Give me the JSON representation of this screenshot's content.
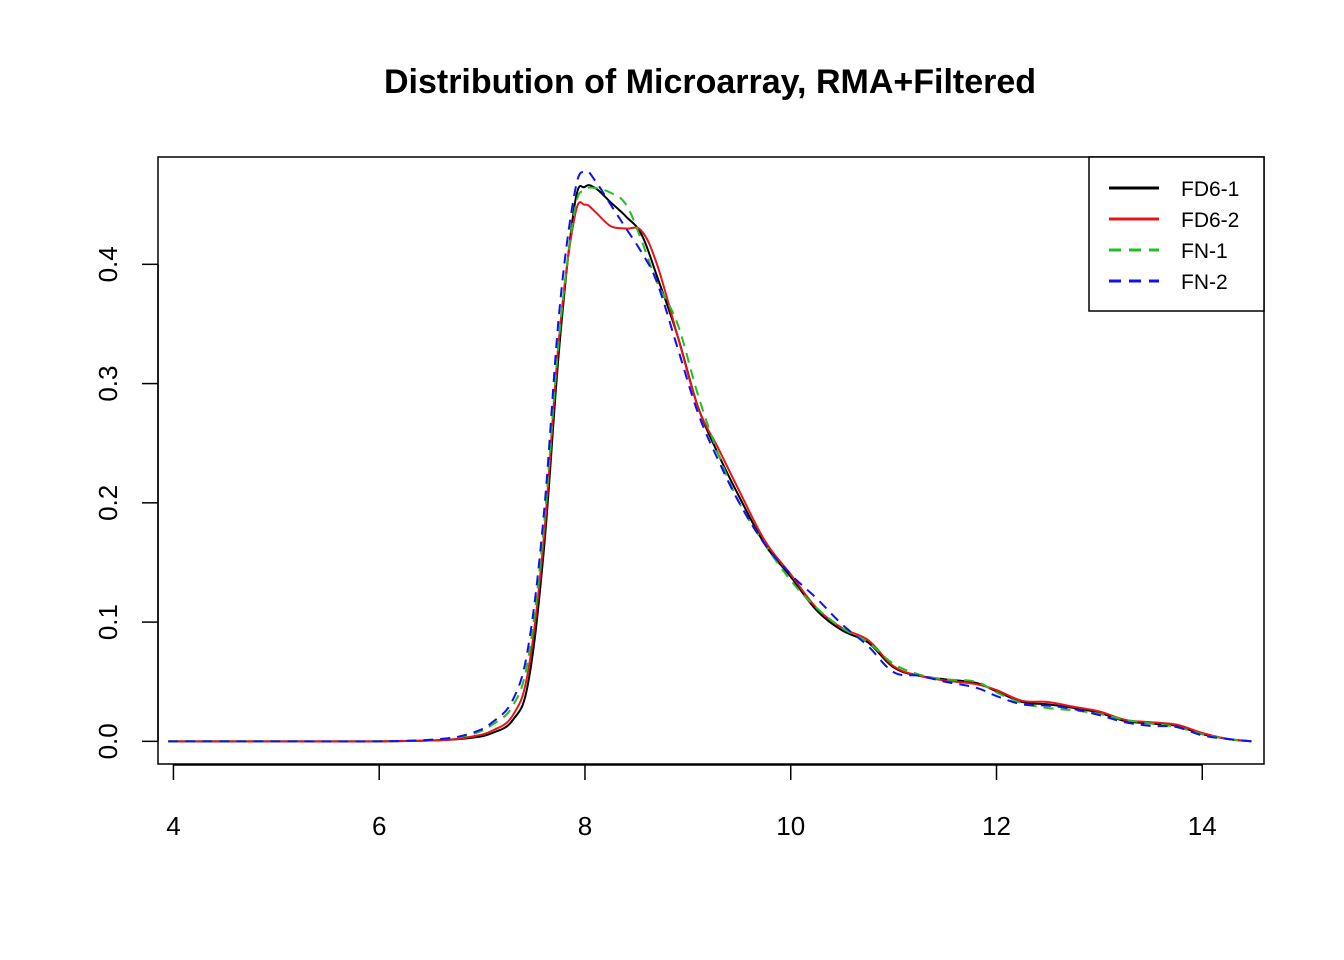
{
  "chart_data": {
    "type": "line",
    "title": "Distribution of Microarray, RMA+Filtered",
    "xlabel": "",
    "ylabel": "",
    "xlim": [
      3.85,
      14.6
    ],
    "ylim": [
      -0.019,
      0.49
    ],
    "x_ticks": [
      4,
      6,
      8,
      10,
      12,
      14
    ],
    "x_tick_labels": [
      "4",
      "6",
      "8",
      "10",
      "12",
      "14"
    ],
    "y_ticks": [
      0.0,
      0.1,
      0.2,
      0.3,
      0.4
    ],
    "y_tick_labels": [
      "0.0",
      "0.1",
      "0.2",
      "0.3",
      "0.4"
    ],
    "grid": false,
    "legend_position": "top-right",
    "series": [
      {
        "name": "FD6-1",
        "color": "#000000",
        "dash": "solid",
        "points": [
          [
            3.95,
            0.0
          ],
          [
            5,
            0.0
          ],
          [
            6,
            0.0
          ],
          [
            6.6,
            0.001
          ],
          [
            6.9,
            0.003
          ],
          [
            7.1,
            0.007
          ],
          [
            7.3,
            0.018
          ],
          [
            7.45,
            0.05
          ],
          [
            7.6,
            0.16
          ],
          [
            7.75,
            0.33
          ],
          [
            7.9,
            0.45
          ],
          [
            8.0,
            0.465
          ],
          [
            8.1,
            0.464
          ],
          [
            8.25,
            0.452
          ],
          [
            8.4,
            0.44
          ],
          [
            8.55,
            0.425
          ],
          [
            8.7,
            0.39
          ],
          [
            8.9,
            0.34
          ],
          [
            9.1,
            0.28
          ],
          [
            9.3,
            0.24
          ],
          [
            9.5,
            0.205
          ],
          [
            9.75,
            0.165
          ],
          [
            10.0,
            0.138
          ],
          [
            10.25,
            0.11
          ],
          [
            10.5,
            0.093
          ],
          [
            10.75,
            0.083
          ],
          [
            11.0,
            0.062
          ],
          [
            11.25,
            0.055
          ],
          [
            11.5,
            0.052
          ],
          [
            11.8,
            0.049
          ],
          [
            12.0,
            0.042
          ],
          [
            12.25,
            0.033
          ],
          [
            12.5,
            0.031
          ],
          [
            12.75,
            0.028
          ],
          [
            13.0,
            0.024
          ],
          [
            13.25,
            0.017
          ],
          [
            13.5,
            0.015
          ],
          [
            13.75,
            0.013
          ],
          [
            14.0,
            0.006
          ],
          [
            14.25,
            0.002
          ],
          [
            14.48,
            0.0
          ]
        ]
      },
      {
        "name": "FD6-2",
        "color": "#e8141a",
        "dash": "solid",
        "points": [
          [
            3.95,
            0.0
          ],
          [
            5,
            0.0
          ],
          [
            6,
            0.0
          ],
          [
            6.6,
            0.001
          ],
          [
            6.9,
            0.004
          ],
          [
            7.1,
            0.009
          ],
          [
            7.3,
            0.022
          ],
          [
            7.45,
            0.06
          ],
          [
            7.6,
            0.17
          ],
          [
            7.75,
            0.34
          ],
          [
            7.9,
            0.44
          ],
          [
            8.0,
            0.45
          ],
          [
            8.1,
            0.444
          ],
          [
            8.25,
            0.432
          ],
          [
            8.4,
            0.43
          ],
          [
            8.55,
            0.428
          ],
          [
            8.7,
            0.4
          ],
          [
            8.9,
            0.34
          ],
          [
            9.1,
            0.28
          ],
          [
            9.3,
            0.245
          ],
          [
            9.5,
            0.21
          ],
          [
            9.75,
            0.168
          ],
          [
            10.0,
            0.14
          ],
          [
            10.25,
            0.112
          ],
          [
            10.5,
            0.095
          ],
          [
            10.75,
            0.085
          ],
          [
            11.0,
            0.063
          ],
          [
            11.25,
            0.055
          ],
          [
            11.5,
            0.051
          ],
          [
            11.8,
            0.048
          ],
          [
            12.0,
            0.043
          ],
          [
            12.25,
            0.034
          ],
          [
            12.5,
            0.033
          ],
          [
            12.75,
            0.029
          ],
          [
            13.0,
            0.025
          ],
          [
            13.25,
            0.018
          ],
          [
            13.5,
            0.016
          ],
          [
            13.75,
            0.014
          ],
          [
            14.0,
            0.007
          ],
          [
            14.25,
            0.002
          ],
          [
            14.48,
            0.0
          ]
        ]
      },
      {
        "name": "FN-1",
        "color": "#20c020",
        "dash": "dashed",
        "points": [
          [
            3.95,
            0.0
          ],
          [
            5,
            0.0
          ],
          [
            6,
            0.0
          ],
          [
            6.6,
            0.002
          ],
          [
            6.9,
            0.006
          ],
          [
            7.1,
            0.014
          ],
          [
            7.3,
            0.03
          ],
          [
            7.45,
            0.07
          ],
          [
            7.6,
            0.18
          ],
          [
            7.75,
            0.34
          ],
          [
            7.9,
            0.445
          ],
          [
            8.0,
            0.462
          ],
          [
            8.1,
            0.464
          ],
          [
            8.25,
            0.46
          ],
          [
            8.4,
            0.45
          ],
          [
            8.55,
            0.42
          ],
          [
            8.7,
            0.385
          ],
          [
            8.9,
            0.35
          ],
          [
            9.1,
            0.29
          ],
          [
            9.3,
            0.24
          ],
          [
            9.5,
            0.2
          ],
          [
            9.75,
            0.165
          ],
          [
            10.0,
            0.135
          ],
          [
            10.25,
            0.112
          ],
          [
            10.5,
            0.095
          ],
          [
            10.75,
            0.083
          ],
          [
            11.0,
            0.065
          ],
          [
            11.25,
            0.056
          ],
          [
            11.5,
            0.052
          ],
          [
            11.8,
            0.05
          ],
          [
            12.0,
            0.041
          ],
          [
            12.25,
            0.032
          ],
          [
            12.5,
            0.028
          ],
          [
            12.75,
            0.026
          ],
          [
            13.0,
            0.023
          ],
          [
            13.25,
            0.018
          ],
          [
            13.5,
            0.015
          ],
          [
            13.75,
            0.012
          ],
          [
            14.0,
            0.006
          ],
          [
            14.25,
            0.002
          ],
          [
            14.48,
            0.0
          ]
        ]
      },
      {
        "name": "FN-2",
        "color": "#1010f0",
        "dash": "dashed",
        "points": [
          [
            3.95,
            0.0
          ],
          [
            5,
            0.0
          ],
          [
            6,
            0.0
          ],
          [
            6.6,
            0.002
          ],
          [
            6.9,
            0.007
          ],
          [
            7.1,
            0.016
          ],
          [
            7.3,
            0.035
          ],
          [
            7.45,
            0.08
          ],
          [
            7.6,
            0.19
          ],
          [
            7.75,
            0.36
          ],
          [
            7.9,
            0.46
          ],
          [
            8.0,
            0.478
          ],
          [
            8.1,
            0.47
          ],
          [
            8.25,
            0.45
          ],
          [
            8.4,
            0.43
          ],
          [
            8.55,
            0.41
          ],
          [
            8.7,
            0.385
          ],
          [
            8.9,
            0.33
          ],
          [
            9.1,
            0.275
          ],
          [
            9.3,
            0.235
          ],
          [
            9.5,
            0.2
          ],
          [
            9.75,
            0.165
          ],
          [
            10.0,
            0.14
          ],
          [
            10.25,
            0.12
          ],
          [
            10.5,
            0.098
          ],
          [
            10.75,
            0.08
          ],
          [
            11.0,
            0.058
          ],
          [
            11.25,
            0.055
          ],
          [
            11.5,
            0.05
          ],
          [
            11.8,
            0.045
          ],
          [
            12.0,
            0.038
          ],
          [
            12.25,
            0.031
          ],
          [
            12.5,
            0.03
          ],
          [
            12.75,
            0.027
          ],
          [
            13.0,
            0.022
          ],
          [
            13.25,
            0.016
          ],
          [
            13.5,
            0.013
          ],
          [
            13.75,
            0.012
          ],
          [
            14.0,
            0.005
          ],
          [
            14.25,
            0.002
          ],
          [
            14.48,
            0.0
          ]
        ]
      }
    ]
  }
}
